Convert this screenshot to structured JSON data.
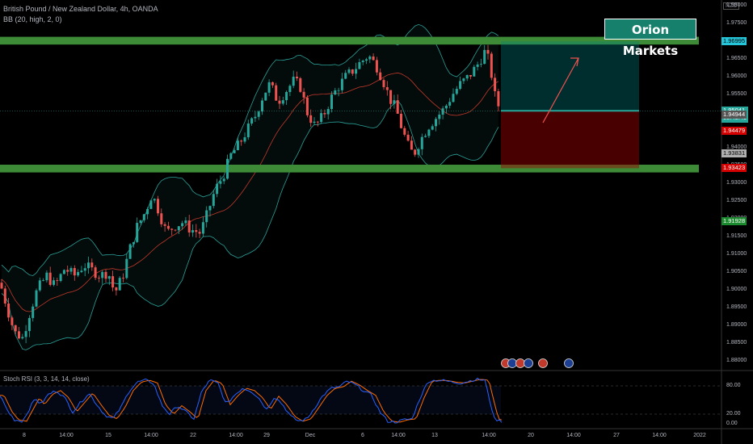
{
  "header": {
    "symbol_line": "British Pound / New Zealand Dollar, 4h, OANDA",
    "indicator_line": "BB (20, high, 2, 0)"
  },
  "brand": {
    "label": "Orion Markets",
    "color": "#16806d"
  },
  "currency_badge": "NZD",
  "rsi": {
    "label": "Stoch RSI (3, 3, 14, 14, close)",
    "levels": [
      "80.00",
      "20.00",
      "0.00"
    ],
    "k_color": "#2962ff",
    "d_color": "#ff6d00"
  },
  "price_badges": [
    {
      "label": "1.96995",
      "bg": "#26c6da",
      "fg": "#000"
    },
    {
      "label": "1.95041",
      "sub": "03:49:49",
      "bg": "#26a69a",
      "fg": "#fff"
    },
    {
      "label": "1.94944",
      "bg": "#555555",
      "fg": "#fff"
    },
    {
      "label": "1.94479",
      "bg": "#d50000",
      "fg": "#fff"
    },
    {
      "label": "1.93831",
      "bg": "#b0b0b0",
      "fg": "#000"
    },
    {
      "label": "1.93423",
      "bg": "#d50000",
      "fg": "#fff"
    },
    {
      "label": "1.91928",
      "bg": "#1b8a2e",
      "fg": "#fff"
    }
  ],
  "y_axis_labels": [
    "1.98000",
    "1.97500",
    "1.97000",
    "1.96500",
    "1.96000",
    "1.95500",
    "1.95000",
    "1.94500",
    "1.94000",
    "1.93500",
    "1.93000",
    "1.92500",
    "1.92000",
    "1.91500",
    "1.91000",
    "1.90500",
    "1.90000",
    "1.89500",
    "1.89000",
    "1.88500",
    "1.88000"
  ],
  "x_axis_labels": [
    "8",
    "14:00",
    "15",
    "14:00",
    "22",
    "14:00",
    "29",
    "Dec",
    "6",
    "14:00",
    "13",
    "14:00",
    "20",
    "14:00",
    "27",
    "14:00",
    "2022"
  ],
  "chart_data": {
    "type": "candlestick",
    "title": "British Pound / New Zealand Dollar, 4h, OANDA",
    "ylim": [
      1.8775,
      1.982
    ],
    "support_zone": [
      1.9335,
      1.935
    ],
    "resistance_zone": [
      1.9695,
      1.971
    ],
    "position": {
      "entry": 1.9504,
      "target": 1.96995,
      "stop": 1.93423
    },
    "colors": {
      "up": "#26a69a",
      "down": "#ef5350",
      "bb_band": "#2aa198",
      "bb_basis": "#c0392b",
      "zone": "#3d8b37"
    },
    "close_path": [
      [
        0,
        1.902
      ],
      [
        10,
        1.894
      ],
      [
        18,
        1.888
      ],
      [
        28,
        1.8865
      ],
      [
        36,
        1.893
      ],
      [
        46,
        1.9
      ],
      [
        58,
        1.904
      ],
      [
        68,
        1.901
      ],
      [
        80,
        1.906
      ],
      [
        92,
        1.904
      ],
      [
        104,
        1.907
      ],
      [
        114,
        1.9055
      ],
      [
        124,
        1.904
      ],
      [
        134,
        1.905
      ],
      [
        142,
        1.899
      ],
      [
        152,
        1.904
      ],
      [
        160,
        1.911
      ],
      [
        170,
        1.918
      ],
      [
        180,
        1.922
      ],
      [
        188,
        1.927
      ],
      [
        196,
        1.9225
      ],
      [
        206,
        1.916
      ],
      [
        216,
        1.918
      ],
      [
        226,
        1.919
      ],
      [
        236,
        1.917
      ],
      [
        248,
        1.916
      ],
      [
        256,
        1.921
      ],
      [
        266,
        1.928
      ],
      [
        276,
        1.932
      ],
      [
        286,
        1.938
      ],
      [
        296,
        1.941
      ],
      [
        306,
        1.945
      ],
      [
        316,
        1.949
      ],
      [
        326,
        1.955
      ],
      [
        334,
        1.958
      ],
      [
        344,
        1.953
      ],
      [
        354,
        1.956
      ],
      [
        364,
        1.959
      ],
      [
        372,
        1.957
      ],
      [
        380,
        1.95
      ],
      [
        390,
        1.946
      ],
      [
        400,
        1.949
      ],
      [
        410,
        1.954
      ],
      [
        418,
        1.957
      ],
      [
        428,
        1.96
      ],
      [
        438,
        1.962
      ],
      [
        446,
        1.964
      ],
      [
        456,
        1.966
      ],
      [
        466,
        1.963
      ],
      [
        474,
        1.959
      ],
      [
        482,
        1.954
      ],
      [
        490,
        1.951
      ],
      [
        498,
        1.945
      ],
      [
        506,
        1.94
      ],
      [
        512,
        1.938
      ],
      [
        520,
        1.942
      ],
      [
        530,
        1.946
      ],
      [
        540,
        1.9485
      ],
      [
        550,
        1.951
      ],
      [
        560,
        1.955
      ],
      [
        570,
        1.958
      ],
      [
        580,
        1.96
      ],
      [
        590,
        1.963
      ],
      [
        600,
        1.967
      ],
      [
        606,
        1.964
      ],
      [
        612,
        1.955
      ],
      [
        620,
        1.95
      ]
    ],
    "stoch_k_path": [
      [
        0,
        60
      ],
      [
        10,
        25
      ],
      [
        18,
        8
      ],
      [
        28,
        5
      ],
      [
        36,
        30
      ],
      [
        44,
        55
      ],
      [
        50,
        40
      ],
      [
        60,
        62
      ],
      [
        70,
        70
      ],
      [
        80,
        55
      ],
      [
        90,
        25
      ],
      [
        100,
        45
      ],
      [
        110,
        65
      ],
      [
        120,
        40
      ],
      [
        130,
        18
      ],
      [
        140,
        10
      ],
      [
        150,
        35
      ],
      [
        160,
        70
      ],
      [
        170,
        88
      ],
      [
        180,
        92
      ],
      [
        190,
        86
      ],
      [
        200,
        40
      ],
      [
        210,
        20
      ],
      [
        220,
        38
      ],
      [
        230,
        25
      ],
      [
        240,
        10
      ],
      [
        250,
        70
      ],
      [
        260,
        92
      ],
      [
        270,
        85
      ],
      [
        280,
        40
      ],
      [
        290,
        60
      ],
      [
        300,
        75
      ],
      [
        310,
        70
      ],
      [
        320,
        55
      ],
      [
        330,
        30
      ],
      [
        340,
        58
      ],
      [
        350,
        40
      ],
      [
        360,
        15
      ],
      [
        370,
        5
      ],
      [
        380,
        10
      ],
      [
        390,
        35
      ],
      [
        400,
        60
      ],
      [
        410,
        75
      ],
      [
        420,
        78
      ],
      [
        430,
        90
      ],
      [
        440,
        82
      ],
      [
        450,
        70
      ],
      [
        460,
        60
      ],
      [
        470,
        25
      ],
      [
        480,
        5
      ],
      [
        490,
        3
      ],
      [
        500,
        8
      ],
      [
        510,
        10
      ],
      [
        520,
        55
      ],
      [
        530,
        90
      ],
      [
        540,
        92
      ],
      [
        550,
        91
      ],
      [
        560,
        88
      ],
      [
        570,
        86
      ],
      [
        580,
        90
      ],
      [
        590,
        94
      ],
      [
        600,
        92
      ],
      [
        606,
        50
      ],
      [
        612,
        10
      ],
      [
        620,
        5
      ]
    ]
  }
}
